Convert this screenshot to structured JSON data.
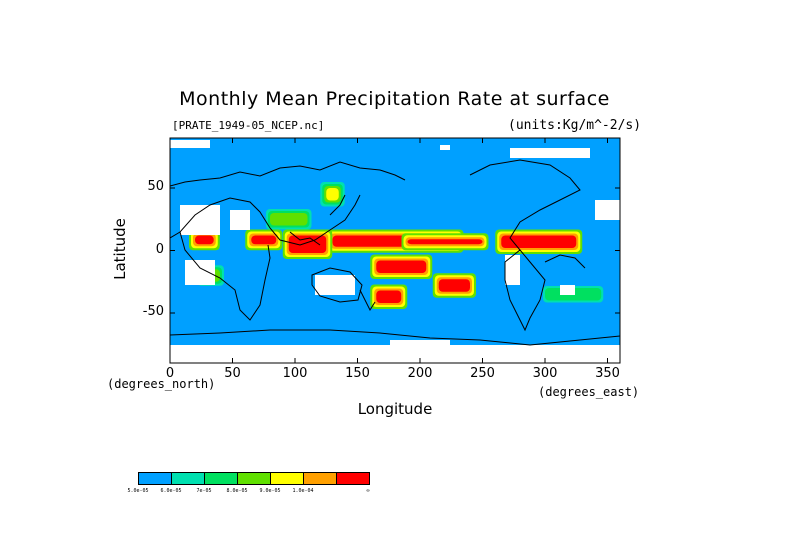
{
  "title": "Monthly Mean Precipitation Rate at surface",
  "subtitle_left": "[PRATE_1949-05_NCEP.nc]",
  "subtitle_right": "(units:Kg/m^-2/s)",
  "xlabel": "Longitude",
  "ylabel": "Latitude",
  "x_unit": "(degrees_east)",
  "y_unit": "(degrees_north)",
  "x_ticks": [
    "0",
    "50",
    "100",
    "150",
    "200",
    "250",
    "300",
    "350"
  ],
  "x_tick_values": [
    0,
    50,
    100,
    150,
    200,
    250,
    300,
    350
  ],
  "y_ticks": [
    "50",
    "0",
    "-50"
  ],
  "y_tick_values": [
    50,
    0,
    -50
  ],
  "xlim": [
    0,
    360
  ],
  "ylim": [
    -90,
    90
  ],
  "colors": {
    "ocean_fill": "#00a0ff",
    "missing": "#ffffff",
    "coast": "#000000"
  },
  "legend": {
    "colors": [
      "#00a0ff",
      "#00e0b0",
      "#00e060",
      "#60e000",
      "#ffff00",
      "#ffa000",
      "#ff0000"
    ],
    "labels": [
      "5.0e-05",
      "6.0e-05",
      "7e-05",
      "8.0e-05",
      "9.0e-05",
      "1.0e-04",
      "∞"
    ]
  },
  "chart_data": {
    "type": "heatmap",
    "title": "Monthly Mean Precipitation Rate at surface",
    "xlabel": "Longitude",
    "ylabel": "Latitude",
    "xlim": [
      0,
      360
    ],
    "ylim": [
      -90,
      90
    ],
    "levels": [
      "5.0e-05",
      "6.0e-05",
      "7e-05",
      "8.0e-05",
      "9.0e-05",
      "1.0e-04",
      "∞"
    ],
    "regions": [
      {
        "lon": [
          130,
          230
        ],
        "lat": [
          3,
          12
        ],
        "level": 6
      },
      {
        "lon": [
          190,
          250
        ],
        "lat": [
          5,
          9
        ],
        "level": 6
      },
      {
        "lon": [
          165,
          205
        ],
        "lat": [
          -18,
          -8
        ],
        "level": 6
      },
      {
        "lon": [
          215,
          240
        ],
        "lat": [
          -33,
          -23
        ],
        "level": 6
      },
      {
        "lon": [
          95,
          125
        ],
        "lat": [
          -2,
          12
        ],
        "level": 6
      },
      {
        "lon": [
          265,
          325
        ],
        "lat": [
          2,
          12
        ],
        "level": 6
      },
      {
        "lon": [
          20,
          35
        ],
        "lat": [
          5,
          12
        ],
        "level": 6
      },
      {
        "lon": [
          65,
          85
        ],
        "lat": [
          5,
          12
        ],
        "level": 6
      },
      {
        "lon": [
          165,
          185
        ],
        "lat": [
          -42,
          -32
        ],
        "level": 6
      },
      {
        "lon": [
          125,
          135
        ],
        "lat": [
          40,
          50
        ],
        "level": 4
      },
      {
        "lon": [
          80,
          110
        ],
        "lat": [
          20,
          30
        ],
        "level": 3
      },
      {
        "lon": [
          25,
          40
        ],
        "lat": [
          -25,
          -15
        ],
        "level": 3
      },
      {
        "lon": [
          300,
          345
        ],
        "lat": [
          -40,
          -30
        ],
        "level": 2
      }
    ]
  }
}
